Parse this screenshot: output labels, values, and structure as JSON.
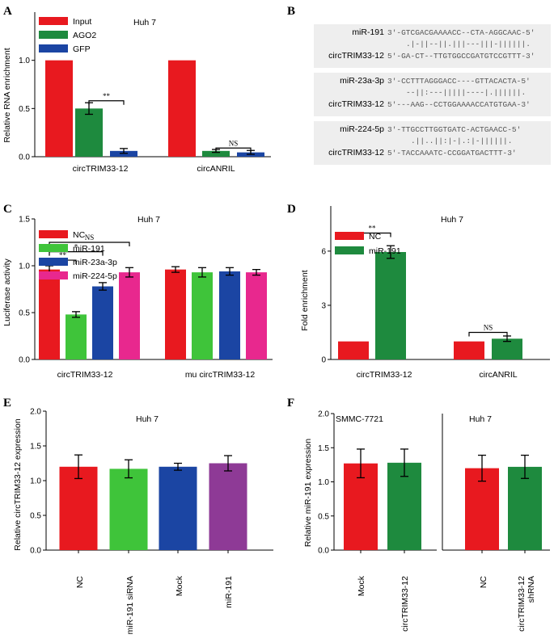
{
  "colors": {
    "red": "#e8191f",
    "dkgreen": "#1e8a3e",
    "ltgreen": "#3fc43a",
    "blue": "#1b45a3",
    "pink": "#e8288e",
    "purple": "#8e3a96"
  },
  "panels": {
    "A": {
      "letter": "A",
      "cell": "Huh 7",
      "ylabel": "Relative RNA enrichment",
      "chart_data": {
        "type": "bar",
        "ylim": [
          0,
          1.5
        ],
        "yticks": [
          0.0,
          0.5,
          1.0
        ],
        "tick_labels": [
          "0.0",
          "0.5",
          "1.0"
        ],
        "groups": [
          "circTRIM33-12",
          "circANRIL"
        ],
        "series": [
          {
            "name": "Input",
            "color_key": "red",
            "values": [
              1.0,
              1.0
            ],
            "err": [
              0,
              0
            ]
          },
          {
            "name": "AGO2",
            "color_key": "dkgreen",
            "values": [
              0.5,
              0.06
            ],
            "err": [
              0.06,
              0.015
            ]
          },
          {
            "name": "GFP",
            "color_key": "blue",
            "values": [
              0.06,
              0.045
            ],
            "err": [
              0.025,
              0.02
            ]
          }
        ],
        "legend": [
          "Input",
          "AGO2",
          "GFP"
        ],
        "annotations": [
          {
            "text": "**",
            "group": 0,
            "from": 1,
            "to": 2
          },
          {
            "text": "NS",
            "group": 1,
            "from": 1,
            "to": 2
          }
        ]
      }
    },
    "B": {
      "letter": "B",
      "pairs": [
        {
          "mirna_name": "miR-191",
          "mirna_seq": "3'-GTCGACGAAAACC--CTA-AGGCAAC-5'",
          "match": ".|-||--||.|||---|||-||||||.",
          "target_name": "circTRIM33-12",
          "target_seq": "5'-GA-CT--TTGTGGCCGATGTCCGTTT-3'"
        },
        {
          "mirna_name": "miR-23a-3p",
          "mirna_seq": "3'-CCTTTAGGGACC----GTTACACTA-5'",
          "match": "--||:---|||||----|.||||||.",
          "target_name": "circTRIM33-12",
          "target_seq": "5'---AAG--CCTGGAAAACCATGTGAA-3'"
        },
        {
          "mirna_name": "miR-224-5p",
          "mirna_seq": "3'-TTGCCTTGGTGATC-ACTGAACC-5'",
          "match": ".||..||:|-|.:|-||||||.",
          "target_name": "circTRIM33-12",
          "target_seq": "5'-TACCAAATC-CCGGATGACTTT-3'"
        }
      ]
    },
    "C": {
      "letter": "C",
      "cell": "Huh 7",
      "ylabel": "Luciferase activity",
      "chart_data": {
        "type": "bar",
        "ylim": [
          0,
          1.5
        ],
        "yticks": [
          0.0,
          0.5,
          1.0,
          1.5
        ],
        "tick_labels": [
          "0.0",
          "0.5",
          "1.0",
          "1.5"
        ],
        "groups": [
          "circTRIM33-12",
          "mu circTRIM33-12"
        ],
        "series": [
          {
            "name": "NC",
            "color_key": "red",
            "values": [
              0.96,
              0.96
            ],
            "err": [
              0.04,
              0.03
            ]
          },
          {
            "name": "miR-191",
            "color_key": "ltgreen",
            "values": [
              0.48,
              0.93
            ],
            "err": [
              0.03,
              0.05
            ]
          },
          {
            "name": "miR-23a-3p",
            "color_key": "blue",
            "values": [
              0.78,
              0.94
            ],
            "err": [
              0.04,
              0.04
            ]
          },
          {
            "name": "miR-224-5p",
            "color_key": "pink",
            "values": [
              0.93,
              0.93
            ],
            "err": [
              0.05,
              0.03
            ]
          }
        ],
        "legend": [
          "NC",
          "miR-191",
          "miR-23a-3p",
          "miR-224-5p"
        ],
        "annotations": [
          {
            "text": "**",
            "from": 0,
            "to": 1
          },
          {
            "text": "*",
            "from": 0,
            "to": 2
          },
          {
            "text": "NS",
            "from": 0,
            "to": 3
          }
        ]
      }
    },
    "D": {
      "letter": "D",
      "cell": "Huh 7",
      "ylabel": "Fold enrichment",
      "chart_data": {
        "type": "bar",
        "ylim": [
          0,
          8.5
        ],
        "yticks": [
          0,
          3,
          6
        ],
        "tick_labels": [
          "0",
          "3",
          "6"
        ],
        "groups": [
          "circTRIM33-12",
          "circANRIL"
        ],
        "series": [
          {
            "name": "NC",
            "color_key": "red",
            "values": [
              1.0,
              1.0
            ],
            "err": [
              0,
              0
            ]
          },
          {
            "name": "miR-191",
            "color_key": "dkgreen",
            "values": [
              5.95,
              1.15
            ],
            "err": [
              0.35,
              0.15
            ]
          }
        ],
        "legend": [
          "NC",
          "miR-191"
        ],
        "annotations": [
          {
            "text": "**",
            "group": 0
          },
          {
            "text": "NS",
            "group": 1
          }
        ]
      }
    },
    "E": {
      "letter": "E",
      "cell": "Huh 7",
      "ylabel": "Relative circTRIM33-12 expression",
      "chart_data": {
        "type": "bar",
        "ylim": [
          0,
          2.0
        ],
        "yticks": [
          0.0,
          0.5,
          1.0,
          1.5,
          2.0
        ],
        "tick_labels": [
          "0.0",
          "0.5",
          "1.0",
          "1.5",
          "2.0"
        ],
        "categories": [
          "NC",
          "miR-191 siRNA",
          "Mock",
          "miR-191"
        ],
        "color_keys": [
          "red",
          "ltgreen",
          "blue",
          "purple"
        ],
        "values": [
          1.2,
          1.17,
          1.2,
          1.25
        ],
        "err": [
          0.17,
          0.13,
          0.05,
          0.11
        ]
      }
    },
    "F": {
      "letter": "F",
      "ylabel": "Relative miR-191 expression",
      "chart_data": [
        {
          "type": "bar",
          "title": "SMMC-7721",
          "ylim": [
            0,
            2.0
          ],
          "yticks": [
            0.0,
            0.5,
            1.0,
            1.5,
            2.0
          ],
          "tick_labels": [
            "0.0",
            "0.5",
            "1.0",
            "1.5",
            "2.0"
          ],
          "categories": [
            "Mock",
            "circTRIM33-12"
          ],
          "color_keys": [
            "red",
            "dkgreen"
          ],
          "values": [
            1.27,
            1.28
          ],
          "err": [
            0.21,
            0.2
          ]
        },
        {
          "type": "bar",
          "title": "Huh 7",
          "ylim": [
            0,
            2.0
          ],
          "categories": [
            "NC",
            "circTRIM33-12 shRNA"
          ],
          "color_keys": [
            "red",
            "dkgreen"
          ],
          "values": [
            1.2,
            1.22
          ],
          "err": [
            0.19,
            0.17
          ]
        }
      ]
    }
  }
}
